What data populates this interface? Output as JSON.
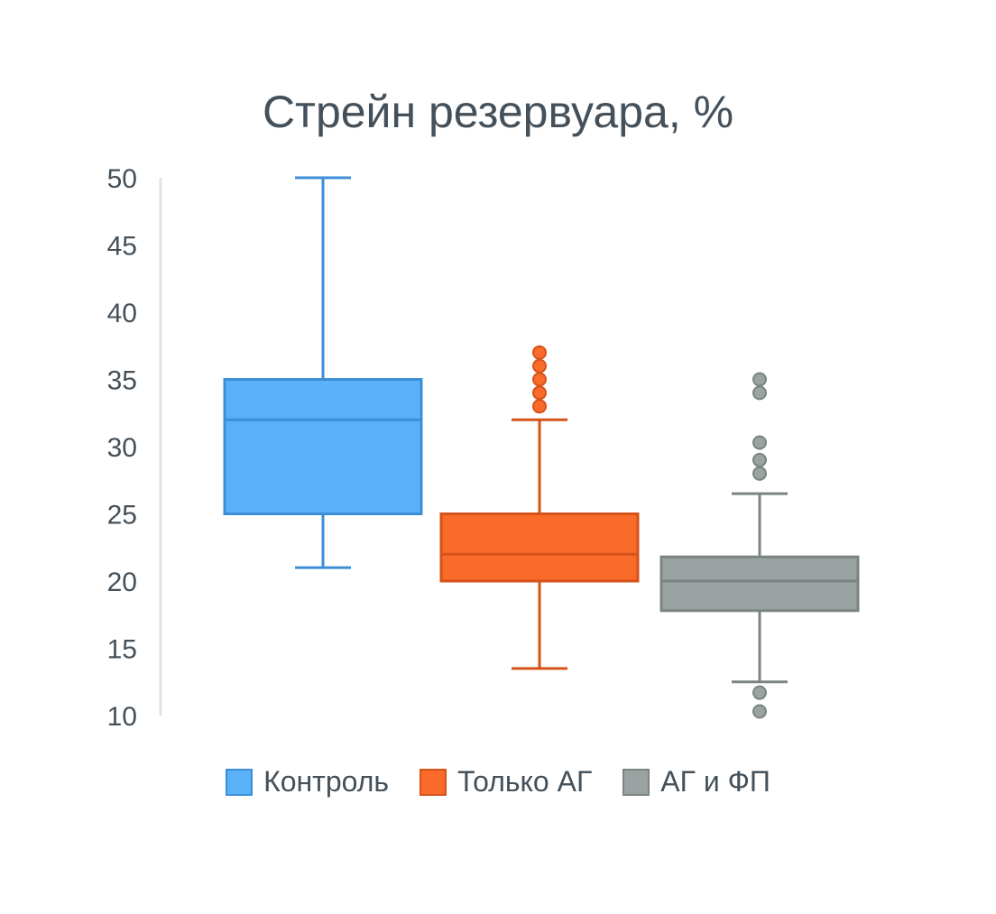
{
  "chart_data": {
    "type": "box",
    "title": "Стрейн резервуара, %",
    "xlabel": "",
    "ylabel": "",
    "ylim": [
      10,
      50
    ],
    "yticks": [
      10,
      15,
      20,
      25,
      30,
      35,
      40,
      45,
      50
    ],
    "grid": false,
    "legend_position": "bottom",
    "series": [
      {
        "name": "Контроль",
        "fill": "#5ab1f8",
        "stroke": "#3c8fd6",
        "whisker_low": 21,
        "q1": 25,
        "median": 32,
        "q3": 35,
        "whisker_high": 50,
        "outliers": []
      },
      {
        "name": "Только АГ",
        "fill": "#fa6a28",
        "stroke": "#d4531a",
        "whisker_low": 13.5,
        "q1": 20,
        "median": 22,
        "q3": 25,
        "whisker_high": 32,
        "outliers": [
          33,
          34,
          35,
          36,
          37
        ]
      },
      {
        "name": "АГ и ФП",
        "fill": "#9aa3a1",
        "stroke": "#7a8482",
        "whisker_low": 12.5,
        "q1": 17.8,
        "median": 20,
        "q3": 21.8,
        "whisker_high": 26.5,
        "outliers": [
          10.3,
          11.7,
          28,
          29,
          30.3,
          34,
          35
        ]
      }
    ]
  }
}
